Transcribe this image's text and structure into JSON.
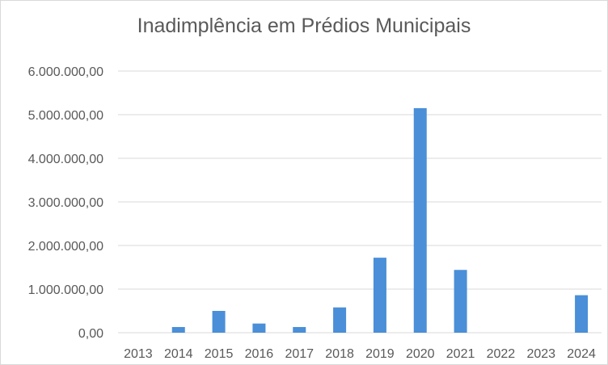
{
  "chart_data": {
    "type": "bar",
    "title": "Inadimplência em Prédios Municipais",
    "xlabel": "",
    "ylabel": "",
    "categories": [
      "2013",
      "2014",
      "2015",
      "2016",
      "2017",
      "2018",
      "2019",
      "2020",
      "2021",
      "2022",
      "2023",
      "2024"
    ],
    "values": [
      0,
      130000,
      500000,
      210000,
      130000,
      580000,
      1720000,
      5150000,
      1440000,
      0,
      0,
      860000
    ],
    "ylim": [
      0,
      6000000
    ],
    "yticks": [
      0,
      1000000,
      2000000,
      3000000,
      4000000,
      5000000,
      6000000
    ],
    "ytick_labels": [
      "0,00",
      "1.000.000,00",
      "2.000.000,00",
      "3.000.000,00",
      "4.000.000,00",
      "5.000.000,00",
      "6.000.000,00"
    ],
    "grid": true,
    "legend": "none",
    "colors": {
      "bar": "#4a8fd8",
      "grid": "#d9d9d9",
      "text": "#595959"
    }
  }
}
